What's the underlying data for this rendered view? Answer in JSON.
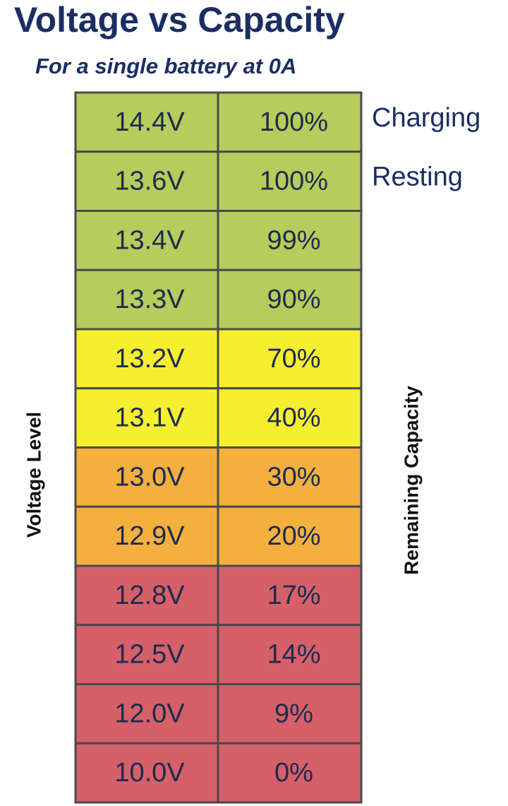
{
  "header": {
    "title": "Voltage vs Capacity",
    "subtitle": "For a single battery at 0A"
  },
  "axis_labels": {
    "left": "Voltage Level",
    "right": "Remaining Capacity"
  },
  "row_notes": [
    "Charging",
    "Resting"
  ],
  "table": {
    "rows": [
      {
        "voltage": "14.4V",
        "capacity": "100%",
        "color": "#b6cc5c"
      },
      {
        "voltage": "13.6V",
        "capacity": "100%",
        "color": "#b6cc5c"
      },
      {
        "voltage": "13.4V",
        "capacity": "99%",
        "color": "#b6cc5c"
      },
      {
        "voltage": "13.3V",
        "capacity": "90%",
        "color": "#b6cc5c"
      },
      {
        "voltage": "13.2V",
        "capacity": "70%",
        "color": "#f5ef30"
      },
      {
        "voltage": "13.1V",
        "capacity": "40%",
        "color": "#f5ef30"
      },
      {
        "voltage": "13.0V",
        "capacity": "30%",
        "color": "#f3b03f"
      },
      {
        "voltage": "12.9V",
        "capacity": "20%",
        "color": "#f3b03f"
      },
      {
        "voltage": "12.8V",
        "capacity": "17%",
        "color": "#d5606a"
      },
      {
        "voltage": "12.5V",
        "capacity": "14%",
        "color": "#d5606a"
      },
      {
        "voltage": "12.0V",
        "capacity": "9%",
        "color": "#d5606a"
      },
      {
        "voltage": "10.0V",
        "capacity": "0%",
        "color": "#d5606a"
      }
    ]
  }
}
